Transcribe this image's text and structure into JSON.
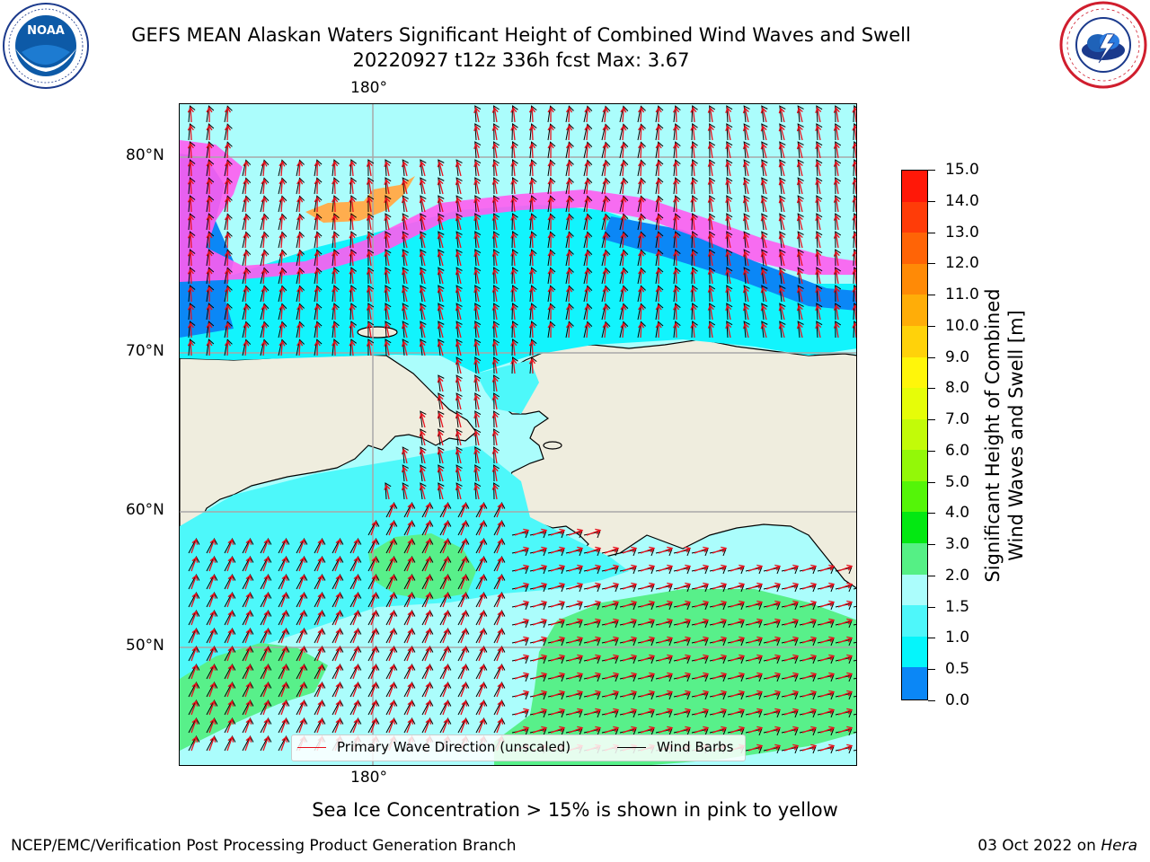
{
  "title_line1": "GEFS MEAN Alaskan Waters Significant Height of Combined Wind Waves and Swell",
  "title_line2": "20220927 t12z 336h fcst   Max: 3.67",
  "map": {
    "top_lon_label": "180°",
    "bottom_lon_label": "180°",
    "lat_labels": [
      "80°N",
      "70°N",
      "60°N",
      "50°N"
    ],
    "colors": {
      "land": "#efedde",
      "ocean_light": "#abfdfc",
      "ocean_mid": "#4df8fa",
      "ocean_cyan": "#12f4fd",
      "ocean_blue": "#0b87f6",
      "ocean_deep": "#1f25ff",
      "green": "#58f08a",
      "ice_pink": "#ff5cf0",
      "ice_orange": "#ffad4e",
      "wave_arrow": "#e8111d",
      "wind_barb": "#000000",
      "grid": "#a8a8a8"
    }
  },
  "legend": {
    "wave_label": "Primary Wave Direction (unscaled)",
    "barb_label": "Wind Barbs"
  },
  "colorbar": {
    "title_line1": "Significant Height of Combined",
    "title_line2": "Wind Waves and Swell [m]",
    "ticks": [
      "15.0",
      "14.0",
      "13.0",
      "12.0",
      "11.0",
      "10.0",
      "9.0",
      "8.0",
      "7.0",
      "6.0",
      "5.0",
      "4.0",
      "3.0",
      "2.0",
      "1.5",
      "1.0",
      "0.5",
      "0.0"
    ],
    "colors": [
      "#ff1808",
      "#ff3c08",
      "#ff6406",
      "#ff8a06",
      "#ffad08",
      "#ffd20a",
      "#fff60a",
      "#e6fd08",
      "#c2fb08",
      "#93f808",
      "#54f508",
      "#03e812",
      "#55f085",
      "#abfdfc",
      "#4ef7fa",
      "#05f5fb",
      "#0b87f6",
      "#1818ff"
    ]
  },
  "footnote": "Sea Ice Concentration > 15% is shown in pink to yellow",
  "footer_left": "NCEP/EMC/Verification Post Processing Product Generation Branch",
  "footer_right_date": "03 Oct 2022 on",
  "footer_right_host": "Hera",
  "logos": {
    "noaa": "NOAA",
    "noaa_ring": "NATIONAL OCEANIC AND ATMOSPHERIC ADMINISTRATION · U.S. DEPARTMENT OF COMMERCE",
    "nws_ring": "NATIONAL WEATHER SERVICE"
  }
}
